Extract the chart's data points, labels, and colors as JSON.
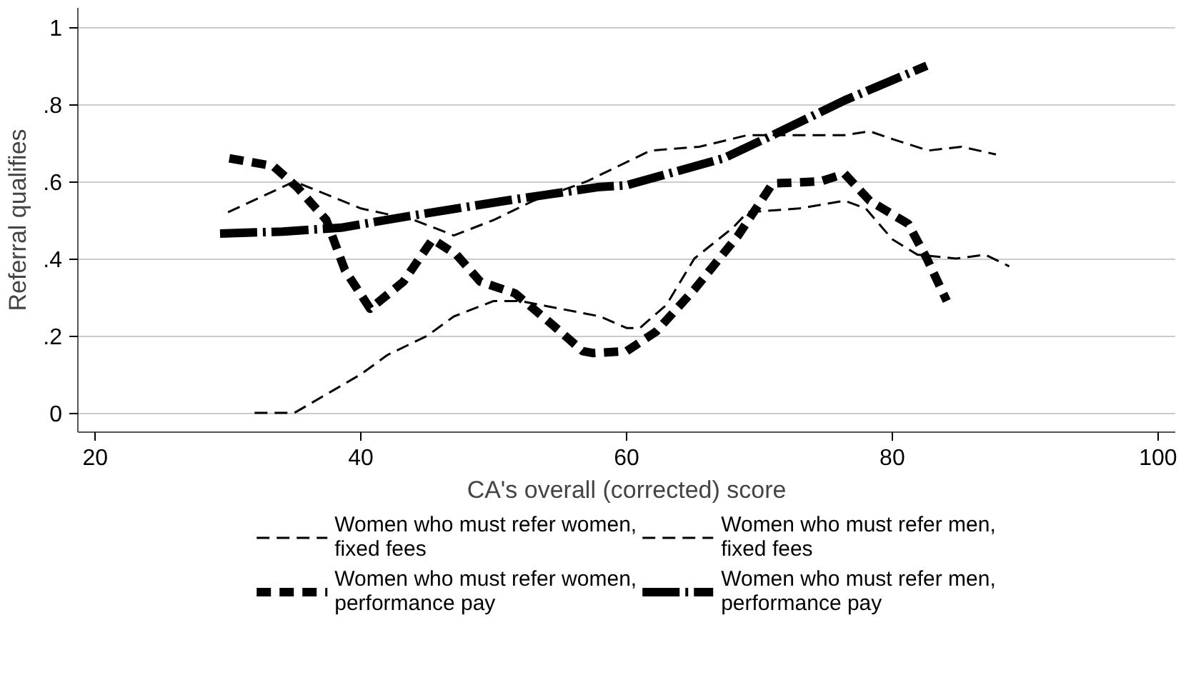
{
  "chart_data": {
    "type": "line",
    "xlabel": "CA's overall (corrected) score",
    "ylabel": "Referral qualifies",
    "xlim": [
      18.7,
      101.3
    ],
    "ylim": [
      -0.05,
      1.05
    ],
    "xticks": [
      20,
      40,
      60,
      80,
      100
    ],
    "yticks": [
      0,
      {
        "value": 0.2,
        "label": ".2"
      },
      {
        "value": 0.4,
        "label": ".4"
      },
      {
        "value": 0.6,
        "label": ".6"
      },
      {
        "value": 0.8,
        "label": ".8"
      },
      1
    ],
    "grid": "y",
    "legend": "bottom",
    "marker": "none",
    "series": [
      {
        "name": "Women who must refer women,\nfixed fees",
        "color": "#000000",
        "line_style": "dashed",
        "x": [
          32,
          35,
          38,
          40,
          42,
          45,
          47,
          50,
          52,
          55,
          58,
          60,
          61,
          63,
          65.1,
          68,
          69.1,
          73,
          76.4,
          78,
          80,
          81.9,
          84.8,
          87,
          88.8
        ],
        "values": [
          0,
          0,
          0.06,
          0.1,
          0.15,
          0.2,
          0.25,
          0.29,
          0.29,
          0.27,
          0.25,
          0.22,
          0.22,
          0.28,
          0.4,
          0.48,
          0.52,
          0.53,
          0.55,
          0.53,
          0.45,
          0.41,
          0.4,
          0.41,
          0.38
        ]
      },
      {
        "name": "Women who must refer men,\nfixed fees",
        "color": "#000000",
        "line_style": "dashed",
        "x": [
          30,
          35,
          40,
          44,
          47,
          50,
          53,
          57,
          61.8,
          65.5,
          69.1,
          72,
          76.4,
          78.3,
          80,
          82.7,
          85.2,
          87.8
        ],
        "values": [
          0.52,
          0.6,
          0.53,
          0.5,
          0.46,
          0.5,
          0.55,
          0.6,
          0.68,
          0.69,
          0.72,
          0.72,
          0.72,
          0.73,
          0.71,
          0.68,
          0.69,
          0.67
        ]
      },
      {
        "name": "Women who must refer women,\nperformance pay",
        "color": "#000000",
        "line_style": "dashed",
        "x": [
          30.1,
          33.4,
          35.2,
          37.4,
          38.8,
          40.7,
          43.2,
          45.4,
          47.2,
          49,
          51.6,
          54.2,
          56.7,
          57.5,
          60,
          62.2,
          65.1,
          68.4,
          71,
          74.6,
          76.4,
          78.3,
          81.2,
          82.6,
          84.1
        ],
        "values": [
          0.66,
          0.64,
          0.585,
          0.5,
          0.37,
          0.27,
          0.34,
          0.45,
          0.41,
          0.34,
          0.31,
          0.235,
          0.16,
          0.155,
          0.16,
          0.21,
          0.32,
          0.46,
          0.595,
          0.6,
          0.62,
          0.55,
          0.49,
          0.4,
          0.29
        ]
      },
      {
        "name": "Women who must refer men,\nperformance pay",
        "color": "#000000",
        "line_style": "dashdot",
        "x": [
          29.4,
          34.1,
          38.5,
          43.6,
          50.9,
          57.8,
          60,
          67.3,
          71,
          76.4,
          82.6
        ],
        "values": [
          0.465,
          0.47,
          0.48,
          0.51,
          0.55,
          0.585,
          0.59,
          0.66,
          0.72,
          0.81,
          0.9
        ]
      }
    ]
  }
}
